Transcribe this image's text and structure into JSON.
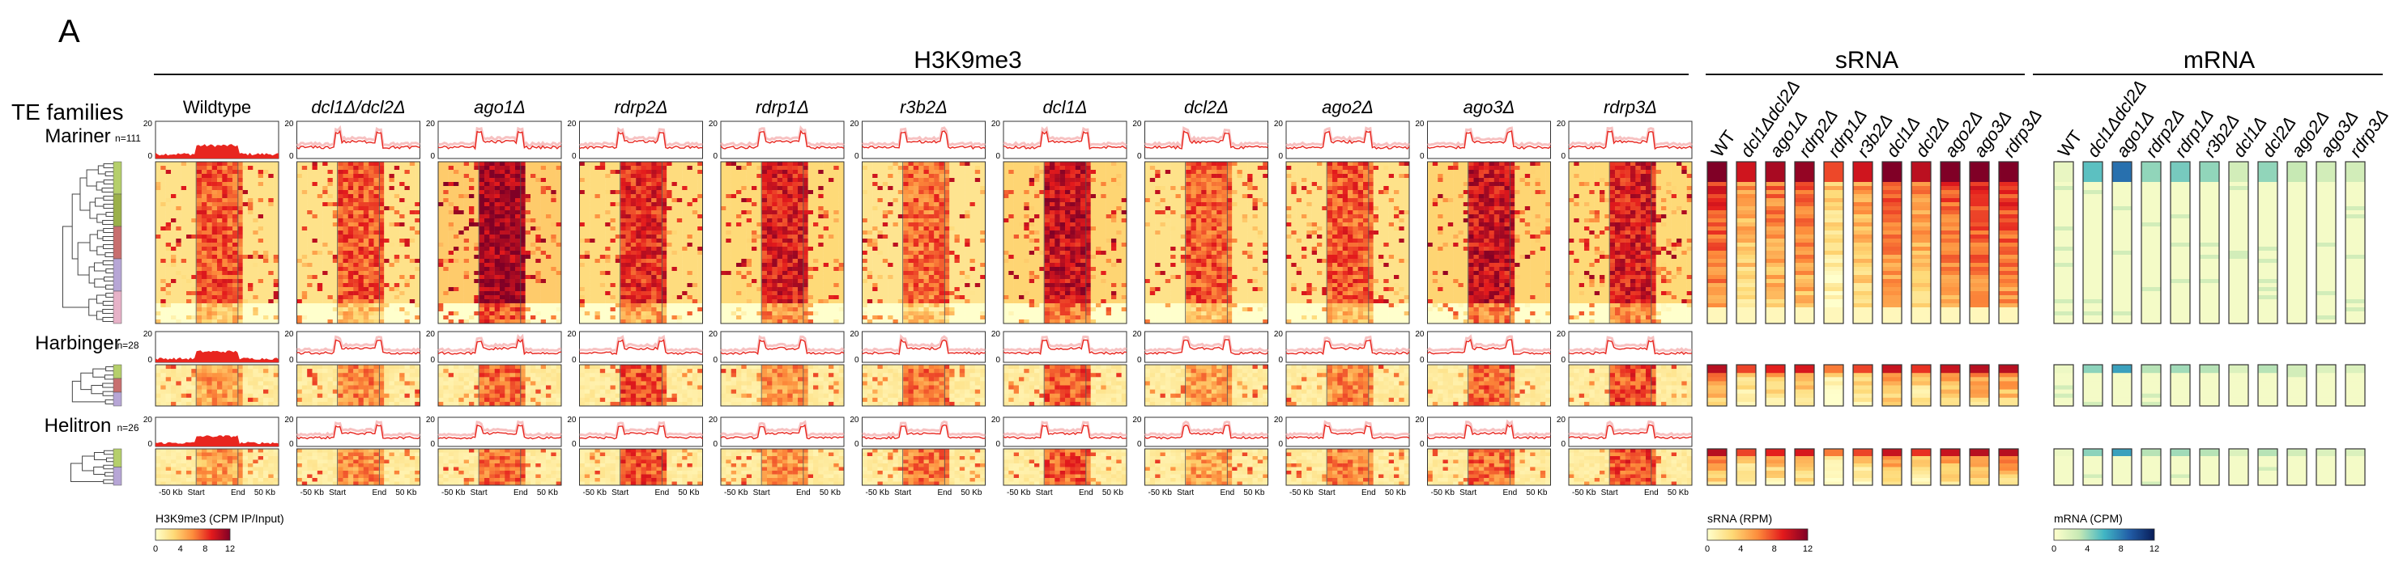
{
  "figure": {
    "panel_label": "A",
    "te_families_label": "TE families",
    "sections": {
      "h3k9me3": "H3K9me3",
      "srna": "sRNA",
      "mrna": "mRNA"
    },
    "h3k9me3_columns": [
      "Wildtype",
      "dcl1Δ/dcl2Δ",
      "ago1Δ",
      "rdrp2Δ",
      "rdrp1Δ",
      "r3b2Δ",
      "dcl1Δ",
      "dcl2Δ",
      "ago2Δ",
      "ago3Δ",
      "rdrp3Δ"
    ],
    "srna_columns": [
      "WT",
      "dcl1Δdcl2Δ",
      "ago1Δ",
      "rdrp2Δ",
      "rdrp1Δ",
      "r3b2Δ",
      "dcl1Δ",
      "dcl2Δ",
      "ago2Δ",
      "ago3Δ",
      "rdrp3Δ"
    ],
    "mrna_columns": [
      "WT",
      "dcl1Δdcl2Δ",
      "ago1Δ",
      "rdrp2Δ",
      "rdrp1Δ",
      "r3b2Δ",
      "dcl1Δ",
      "dcl2Δ",
      "ago2Δ",
      "ago3Δ",
      "rdrp3Δ"
    ],
    "families": [
      {
        "name": "Mariner",
        "n": "n=111",
        "cluster_colors": [
          "#b5cf6b",
          "#9bb04a",
          "#c86f6f",
          "#b7a6d6",
          "#e7b2c8"
        ]
      },
      {
        "name": "Harbinger",
        "n": "n=28",
        "cluster_colors": [
          "#b5cf6b",
          "#c86f6f",
          "#b7a6d6"
        ]
      },
      {
        "name": "Helitron",
        "n": "n=26",
        "cluster_colors": [
          "#b5cf6b",
          "#b7a6d6"
        ]
      }
    ],
    "profile_y_max": "20",
    "profile_y_min": "0",
    "x_ticks": [
      "-50 Kb",
      "Start",
      "End",
      "50 Kb"
    ],
    "colorbars": {
      "h3k9me3": {
        "title": "H3K9me3 (CPM IP/Input)",
        "ticks": [
          "0",
          "4",
          "8",
          "12"
        ],
        "colors": [
          "#ffffcc",
          "#fed976",
          "#fd8d3c",
          "#e31a1c",
          "#800026"
        ]
      },
      "srna": {
        "title": "sRNA (RPM)",
        "ticks": [
          "0",
          "4",
          "8",
          "12"
        ],
        "colors": [
          "#ffffcc",
          "#fed976",
          "#fd8d3c",
          "#e31a1c",
          "#800026"
        ]
      },
      "mrna": {
        "title": "mRNA (CPM)",
        "ticks": [
          "0",
          "4",
          "8",
          "12"
        ],
        "colors": [
          "#ffffcc",
          "#c7e9b4",
          "#41b6c4",
          "#225ea8",
          "#081d58"
        ]
      }
    },
    "heatmap_intensity": {
      "mariner_h3k9me3": [
        0.55,
        0.55,
        0.85,
        0.65,
        0.7,
        0.5,
        0.75,
        0.55,
        0.55,
        0.75,
        0.7
      ],
      "srna_mariner": [
        0.95,
        0.7,
        0.8,
        0.85,
        0.55,
        0.7,
        0.9,
        0.75,
        0.9,
        0.95,
        0.95
      ],
      "mrna_mariner": [
        0.1,
        0.45,
        0.7,
        0.35,
        0.4,
        0.35,
        0.2,
        0.35,
        0.25,
        0.2,
        0.2
      ]
    }
  }
}
